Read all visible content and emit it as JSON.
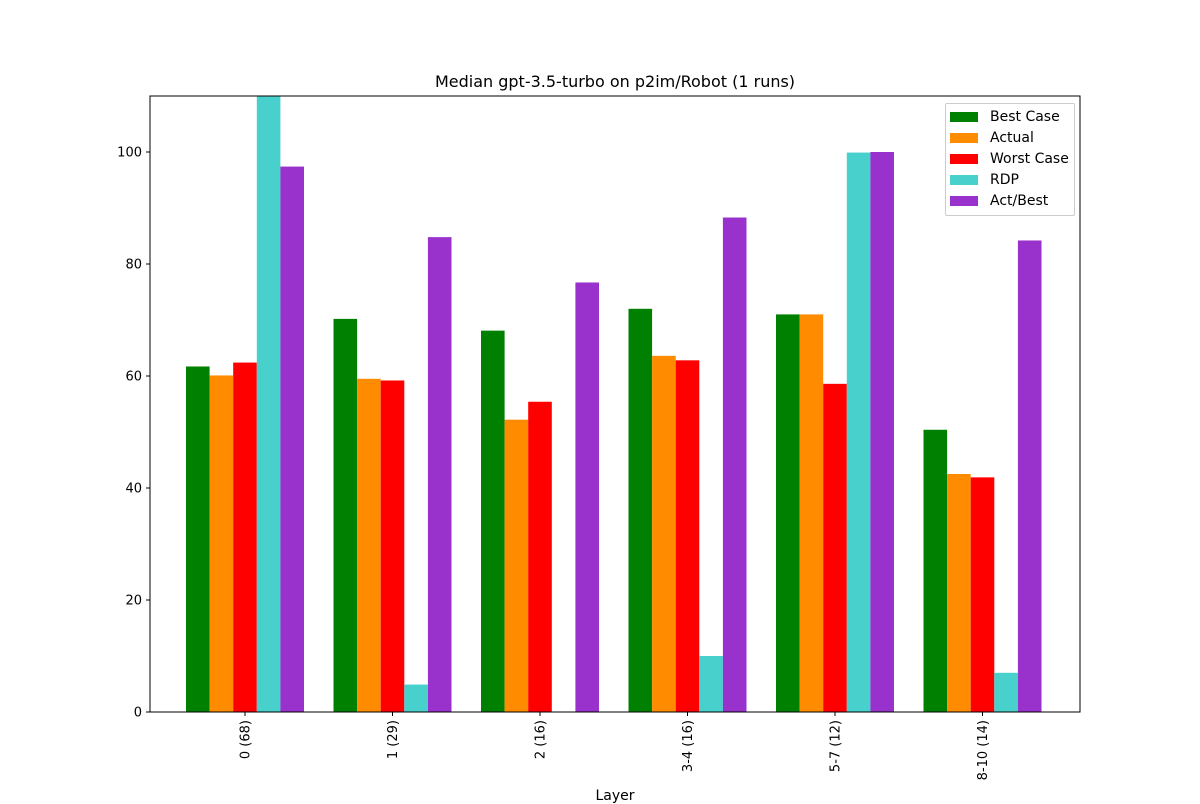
{
  "chart_data": {
    "type": "bar",
    "title": "Median gpt-3.5-turbo on p2im/Robot (1 runs)",
    "xlabel": "Layer",
    "ylabel": "",
    "ylim": [
      0,
      110
    ],
    "yticks": [
      0,
      20,
      40,
      60,
      80,
      100
    ],
    "categories": [
      "0 (68)",
      "1 (29)",
      "2 (16)",
      "3-4 (16)",
      "5-7 (12)",
      "8-10 (14)"
    ],
    "series": [
      {
        "name": "Best Case",
        "color": "#008000",
        "values": [
          61.7,
          70.2,
          68.1,
          72.0,
          71.0,
          50.4
        ]
      },
      {
        "name": "Actual",
        "color": "#ff8c00",
        "values": [
          60.1,
          59.5,
          52.2,
          63.6,
          71.0,
          42.5
        ]
      },
      {
        "name": "Worst Case",
        "color": "#ff0000",
        "values": [
          62.4,
          59.2,
          55.4,
          62.8,
          58.6,
          41.9
        ]
      },
      {
        "name": "RDP",
        "color": "#48d1cc",
        "values": [
          110.0,
          4.9,
          0.0,
          10.0,
          99.9,
          7.0
        ]
      },
      {
        "name": "Act/Best",
        "color": "#9932cc",
        "values": [
          97.4,
          84.8,
          76.7,
          88.3,
          100.0,
          84.2
        ]
      }
    ],
    "legend_position": "upper-right",
    "grid": false
  }
}
